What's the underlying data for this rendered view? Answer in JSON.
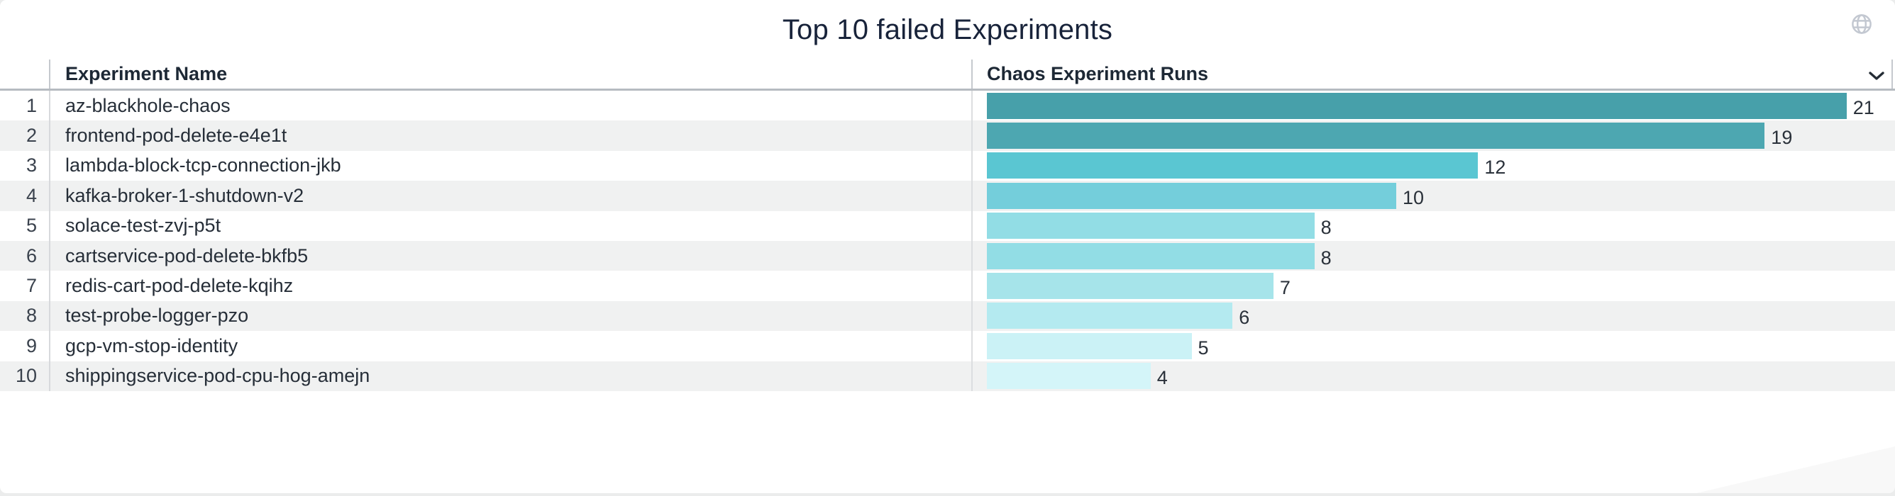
{
  "header": {
    "title": "Top 10 failed Experiments",
    "globe_icon": "globe-icon"
  },
  "table": {
    "columns": [
      {
        "label": "Experiment Name"
      },
      {
        "label": "Chaos Experiment Runs"
      }
    ],
    "rows": [
      {
        "rank": 1,
        "name": "az-blackhole-chaos",
        "runs": 21
      },
      {
        "rank": 2,
        "name": "frontend-pod-delete-e4e1t",
        "runs": 19
      },
      {
        "rank": 3,
        "name": "lambda-block-tcp-connection-jkb",
        "runs": 12
      },
      {
        "rank": 4,
        "name": "kafka-broker-1-shutdown-v2",
        "runs": 10
      },
      {
        "rank": 5,
        "name": "solace-test-zvj-p5t",
        "runs": 8
      },
      {
        "rank": 6,
        "name": "cartservice-pod-delete-bkfb5",
        "runs": 8
      },
      {
        "rank": 7,
        "name": "redis-cart-pod-delete-kqihz",
        "runs": 7
      },
      {
        "rank": 8,
        "name": "test-probe-logger-pzo",
        "runs": 6
      },
      {
        "rank": 9,
        "name": "gcp-vm-stop-identity",
        "runs": 5
      },
      {
        "rank": 10,
        "name": "shippingservice-pod-cpu-hog-amejn",
        "runs": 4
      }
    ]
  },
  "chart_data": {
    "type": "bar",
    "orientation": "horizontal",
    "title": "Top 10 failed Experiments",
    "xlabel": "Chaos Experiment Runs",
    "ylabel": "Experiment Name",
    "categories": [
      "az-blackhole-chaos",
      "frontend-pod-delete-e4e1t",
      "lambda-block-tcp-connection-jkb",
      "kafka-broker-1-shutdown-v2",
      "solace-test-zvj-p5t",
      "cartservice-pod-delete-bkfb5",
      "redis-cart-pod-delete-kqihz",
      "test-probe-logger-pzo",
      "gcp-vm-stop-identity",
      "shippingservice-pod-cpu-hog-amejn"
    ],
    "values": [
      21,
      19,
      12,
      10,
      8,
      8,
      7,
      6,
      5,
      4
    ],
    "value_labels_shown": true,
    "xlim": [
      0,
      22.3
    ],
    "grid": false,
    "legend": "none",
    "bar_colors": [
      "#47a0aa",
      "#4da7b1",
      "#5ac6d2",
      "#74cedb",
      "#92dde5",
      "#92dde5",
      "#a6e4ea",
      "#b4eaf0",
      "#cbf2f6",
      "#d4f5f9"
    ],
    "colors": {
      "title_text": "#18233a",
      "header_text": "#1d2835",
      "body_text": "#262e38",
      "row_stripe": "#f0f1f1",
      "header_border": "#b6bbc1",
      "column_divider": "#d7d9dc",
      "globe_icon": "#c3c8d1",
      "chevron_icon": "#242c35"
    }
  }
}
